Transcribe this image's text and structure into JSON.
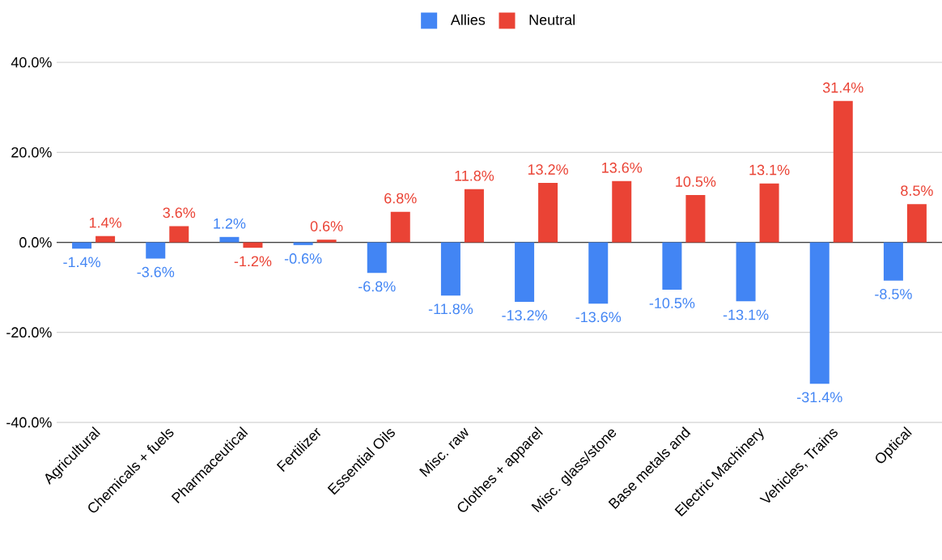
{
  "chart_data": {
    "type": "bar",
    "categories": [
      "Agricultural",
      "Chemicals + fuels",
      "Pharmaceutical",
      "Fertilizer",
      "Essential Oils",
      "Misc. raw",
      "Clothes + apparel",
      "Misc. glass/stone",
      "Base metals and",
      "Electric Machinery",
      "Vehicles, Trains",
      "Optical"
    ],
    "series": [
      {
        "name": "Allies",
        "color": "#4285f4",
        "values": [
          -1.4,
          -3.6,
          1.2,
          -0.6,
          -6.8,
          -11.8,
          -13.2,
          -13.6,
          -10.5,
          -13.1,
          -31.4,
          -8.5
        ],
        "value_labels": [
          "-1.4%",
          "-3.6%",
          "1.2%",
          "-0.6%",
          "-6.8%",
          "-11.8%",
          "-13.2%",
          "-13.6%",
          "-10.5%",
          "-13.1%",
          "-31.4%",
          "-8.5%"
        ]
      },
      {
        "name": "Neutral",
        "color": "#ea4335",
        "values": [
          1.4,
          3.6,
          -1.2,
          0.6,
          6.8,
          11.8,
          13.2,
          13.6,
          10.5,
          13.1,
          31.4,
          8.5
        ],
        "value_labels": [
          "1.4%",
          "3.6%",
          "-1.2%",
          "0.6%",
          "6.8%",
          "11.8%",
          "13.2%",
          "13.6%",
          "10.5%",
          "13.1%",
          "31.4%",
          "8.5%"
        ]
      }
    ],
    "ylim": [
      -40,
      40
    ],
    "yticks": [
      {
        "value": -40,
        "label": "-40.0%"
      },
      {
        "value": -20,
        "label": "-20.0%"
      },
      {
        "value": 0,
        "label": "0.0%"
      },
      {
        "value": 20,
        "label": "20.0%"
      },
      {
        "value": 40,
        "label": "40.0%"
      }
    ],
    "grid": "y",
    "legend": "top"
  }
}
